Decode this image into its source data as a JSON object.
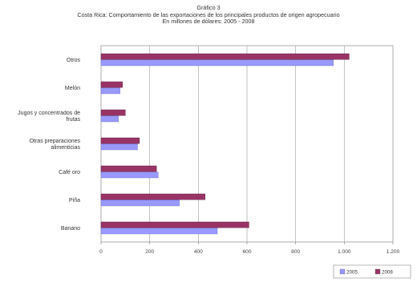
{
  "title_lines": [
    "Gráfico 3",
    "Costa Rica: Comportamiento de las exportaciones de los principales productos de origen agropecuario",
    "En millones de dólares: 2005 - 2008"
  ],
  "chart_data": {
    "type": "bar",
    "orientation": "horizontal",
    "categories": [
      "Otros",
      "Melón",
      "Jugos y concentrados de frutas",
      "Otras preparaciones alimenticias",
      "Café oro",
      "Piña",
      "Banano"
    ],
    "category_lines": [
      [
        "Otros"
      ],
      [
        "Melón"
      ],
      [
        "Jugos y concentrados de",
        "frutas"
      ],
      [
        "Otras preparaciones",
        "alimenticias"
      ],
      [
        "Café oro"
      ],
      [
        "Piña"
      ],
      [
        "Banano"
      ]
    ],
    "series": [
      {
        "name": "2005",
        "color": "#9999ff",
        "values": [
          955,
          78,
          72,
          150,
          235,
          322,
          478
        ]
      },
      {
        "name": "2008",
        "color": "#993366",
        "values": [
          1020,
          88,
          100,
          158,
          228,
          428,
          608
        ]
      }
    ],
    "xlim": [
      0,
      1200
    ],
    "xticks": [
      "0",
      "200",
      "400",
      "600",
      "800",
      "1.000",
      "1.200"
    ],
    "grid": true,
    "legend_position": "bottom-right"
  }
}
